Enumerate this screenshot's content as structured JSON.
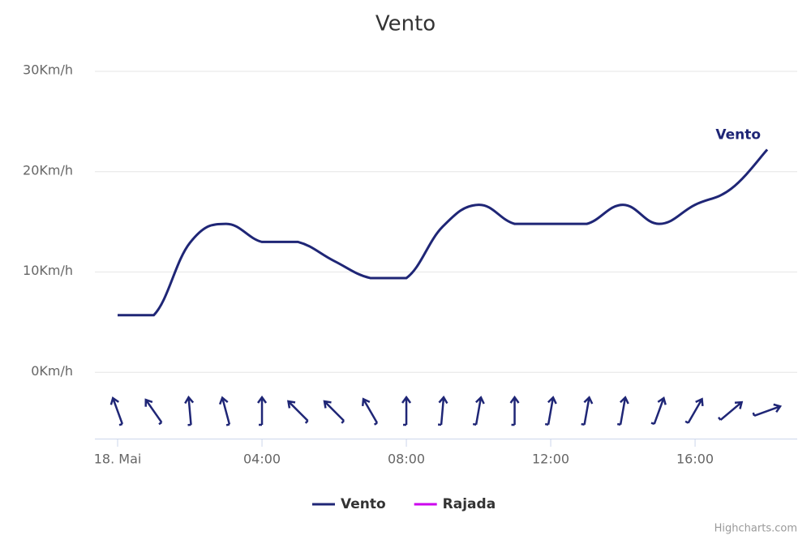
{
  "chart_data": {
    "type": "line",
    "title": "Vento",
    "x": [
      0,
      1,
      2,
      3,
      4,
      5,
      6,
      7,
      8,
      9,
      10,
      11,
      12,
      13,
      14,
      15,
      16,
      17,
      18
    ],
    "series": [
      {
        "name": "Vento",
        "color": "#1f2676",
        "values": [
          5.7,
          5.7,
          12.9,
          14.8,
          13.0,
          13.0,
          11.1,
          9.4,
          9.4,
          14.5,
          16.7,
          14.8,
          14.8,
          14.8,
          16.7,
          14.8,
          16.7,
          18.3,
          22.2
        ]
      },
      {
        "name": "Rajada",
        "color": "#cc00ee",
        "values": [
          null,
          null,
          null,
          null,
          null,
          null,
          null,
          null,
          null,
          null,
          null,
          null,
          null,
          null,
          null,
          null,
          null,
          null,
          null
        ]
      }
    ],
    "wind_direction": [
      160,
      145,
      175,
      165,
      180,
      135,
      135,
      150,
      180,
      185,
      190,
      180,
      190,
      190,
      190,
      200,
      210,
      230,
      250
    ],
    "xlim": [
      -0.63,
      18.83
    ],
    "xticks": [
      {
        "value": 0,
        "label": "18. Mai"
      },
      {
        "value": 4,
        "label": "04:00"
      },
      {
        "value": 8,
        "label": "08:00"
      },
      {
        "value": 12,
        "label": "12:00"
      },
      {
        "value": 16,
        "label": "16:00"
      }
    ],
    "ylim": [
      -6.6,
      30
    ],
    "yticks": [
      {
        "value": 0,
        "label": "0Km/h"
      },
      {
        "value": 10,
        "label": "10Km/h"
      },
      {
        "value": 20,
        "label": "20Km/h"
      },
      {
        "value": 30,
        "label": "30Km/h"
      }
    ],
    "grid": true,
    "credits": "Highcharts.com"
  }
}
